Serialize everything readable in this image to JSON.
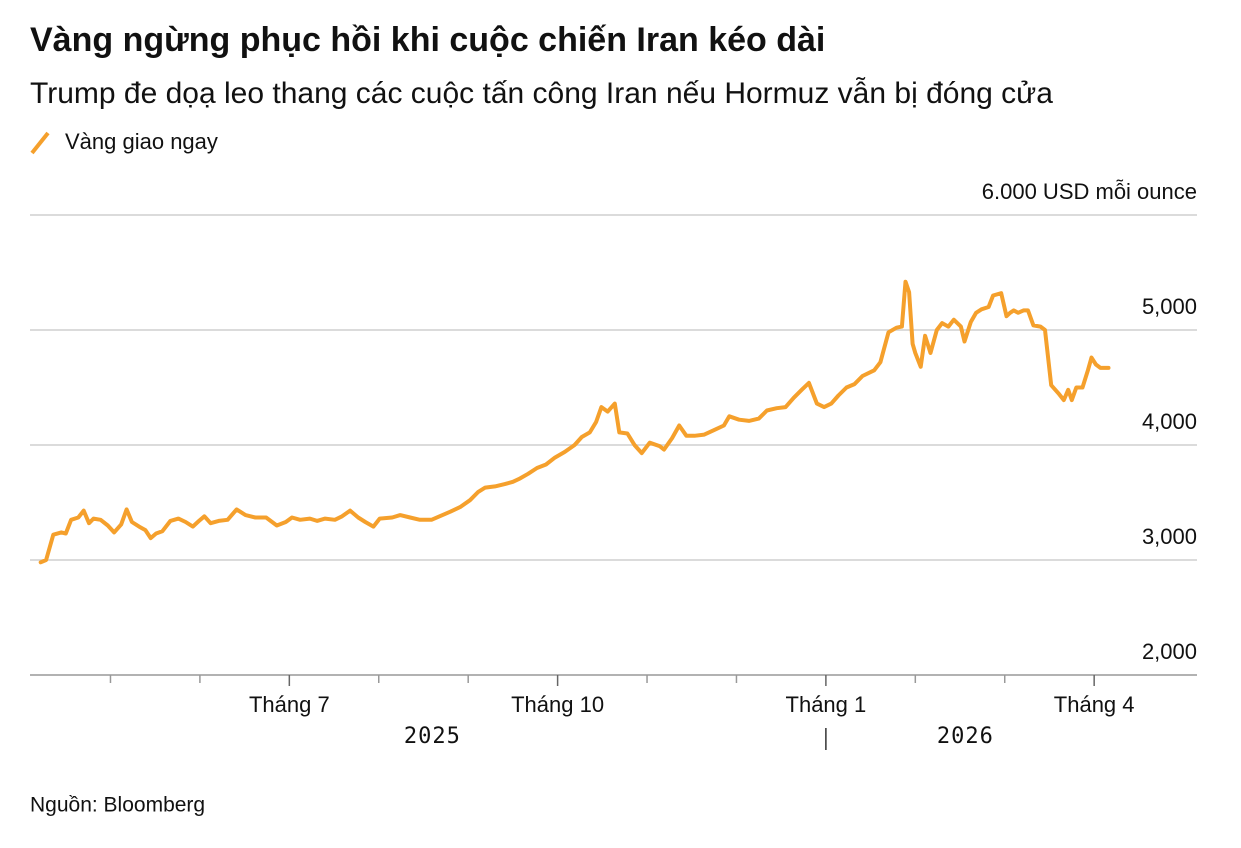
{
  "chart_data": {
    "type": "line",
    "title": "Vàng ngừng phục hồi khi cuộc chiến Iran kéo dài",
    "subtitle": "Trump đe dọạ leo thang các cuộc tấn công Iran nếu Hormuz vẫn bị đóng cửa",
    "source": "Nguồn: Bloomberg",
    "x": [
      4.22,
      4.28,
      4.36,
      4.45,
      4.5,
      4.56,
      4.64,
      4.7,
      4.76,
      4.81,
      4.89,
      4.97,
      5.04,
      5.12,
      5.18,
      5.24,
      5.32,
      5.39,
      5.45,
      5.51,
      5.58,
      5.67,
      5.76,
      5.84,
      5.92,
      5.99,
      6.05,
      6.12,
      6.21,
      6.31,
      6.41,
      6.51,
      6.62,
      6.74,
      6.86,
      6.96,
      7.03,
      7.12,
      7.23,
      7.31,
      7.4,
      7.51,
      7.59,
      7.68,
      7.77,
      7.85,
      7.94,
      8.01,
      8.15,
      8.24,
      8.35,
      8.46,
      8.59,
      8.68,
      8.8,
      8.91,
      9.02,
      9.11,
      9.19,
      9.3,
      9.41,
      9.5,
      9.58,
      9.67,
      9.77,
      9.87,
      9.97,
      10.08,
      10.19,
      10.27,
      10.36,
      10.43,
      10.49,
      10.56,
      10.64,
      10.69,
      10.78,
      10.86,
      10.94,
      11.03,
      11.14,
      11.19,
      11.28,
      11.36,
      11.44,
      11.53,
      11.64,
      11.75,
      11.86,
      11.92,
      12.03,
      12.14,
      12.25,
      12.34,
      12.45,
      12.55,
      12.64,
      12.73,
      12.81,
      12.9,
      12.98,
      13.06,
      13.14,
      13.23,
      13.32,
      13.41,
      13.54,
      13.61,
      13.7,
      13.79,
      13.85,
      13.89,
      13.93,
      13.97,
      14.0,
      14.06,
      14.11,
      14.17,
      14.24,
      14.3,
      14.37,
      14.43,
      14.51,
      14.55,
      14.62,
      14.68,
      14.74,
      14.82,
      14.87,
      14.96,
      15.02,
      15.06,
      15.1,
      15.15,
      15.21,
      15.26,
      15.32,
      15.4,
      15.45,
      15.52,
      15.6,
      15.66,
      15.71,
      15.75,
      15.8,
      15.87,
      15.93,
      15.97,
      16.02,
      16.07,
      16.16
    ],
    "series": [
      {
        "name": "Vàng giao ngay",
        "color": "#f5a02c",
        "values": [
          2980,
          3000,
          3220,
          3240,
          3230,
          3350,
          3370,
          3430,
          3320,
          3360,
          3350,
          3300,
          3240,
          3310,
          3440,
          3330,
          3290,
          3260,
          3190,
          3230,
          3250,
          3340,
          3360,
          3330,
          3290,
          3340,
          3380,
          3320,
          3340,
          3350,
          3440,
          3390,
          3370,
          3370,
          3300,
          3330,
          3370,
          3350,
          3360,
          3340,
          3360,
          3350,
          3380,
          3430,
          3370,
          3330,
          3290,
          3360,
          3370,
          3390,
          3370,
          3350,
          3350,
          3380,
          3420,
          3460,
          3520,
          3590,
          3630,
          3640,
          3660,
          3680,
          3710,
          3750,
          3800,
          3830,
          3890,
          3940,
          4000,
          4070,
          4110,
          4200,
          4330,
          4290,
          4360,
          4110,
          4100,
          4000,
          3930,
          4020,
          3990,
          3960,
          4060,
          4170,
          4080,
          4080,
          4090,
          4130,
          4170,
          4250,
          4220,
          4210,
          4230,
          4300,
          4320,
          4330,
          4410,
          4480,
          4540,
          4360,
          4330,
          4360,
          4430,
          4500,
          4530,
          4600,
          4650,
          4720,
          4980,
          5020,
          5030,
          5420,
          5330,
          4880,
          4800,
          4680,
          4950,
          4800,
          5000,
          5060,
          5030,
          5090,
          5030,
          4900,
          5070,
          5150,
          5180,
          5200,
          5300,
          5320,
          5120,
          5150,
          5170,
          5150,
          5170,
          5170,
          5040,
          5030,
          5000,
          4520,
          4450,
          4390,
          4480,
          4390,
          4500,
          4500,
          4650,
          4760,
          4700,
          4670,
          4670
        ]
      }
    ],
    "xlim": [
      4.1,
      17.15
    ],
    "xticks": [
      {
        "value": 7,
        "label": "Tháng 7"
      },
      {
        "value": 10,
        "label": "Tháng 10"
      },
      {
        "value": 13,
        "label": "Tháng 1"
      },
      {
        "value": 16,
        "label": "Tháng 4"
      }
    ],
    "xminor_ticks": [
      5,
      6,
      8,
      9,
      11,
      12,
      14,
      15
    ],
    "year_labels": [
      {
        "value": 8.6,
        "label": "2025"
      },
      {
        "value": 14.56,
        "label": "2026"
      }
    ],
    "year_divider": 13,
    "ylim": [
      2000,
      6000
    ],
    "yticks": [
      {
        "value": 2000,
        "label": "2,000"
      },
      {
        "value": 3000,
        "label": "3,000"
      },
      {
        "value": 4000,
        "label": "4,000"
      },
      {
        "value": 5000,
        "label": "5,000"
      },
      {
        "value": 6000,
        "label": "6.000 USD mỗi ounce"
      }
    ],
    "grid": true
  }
}
